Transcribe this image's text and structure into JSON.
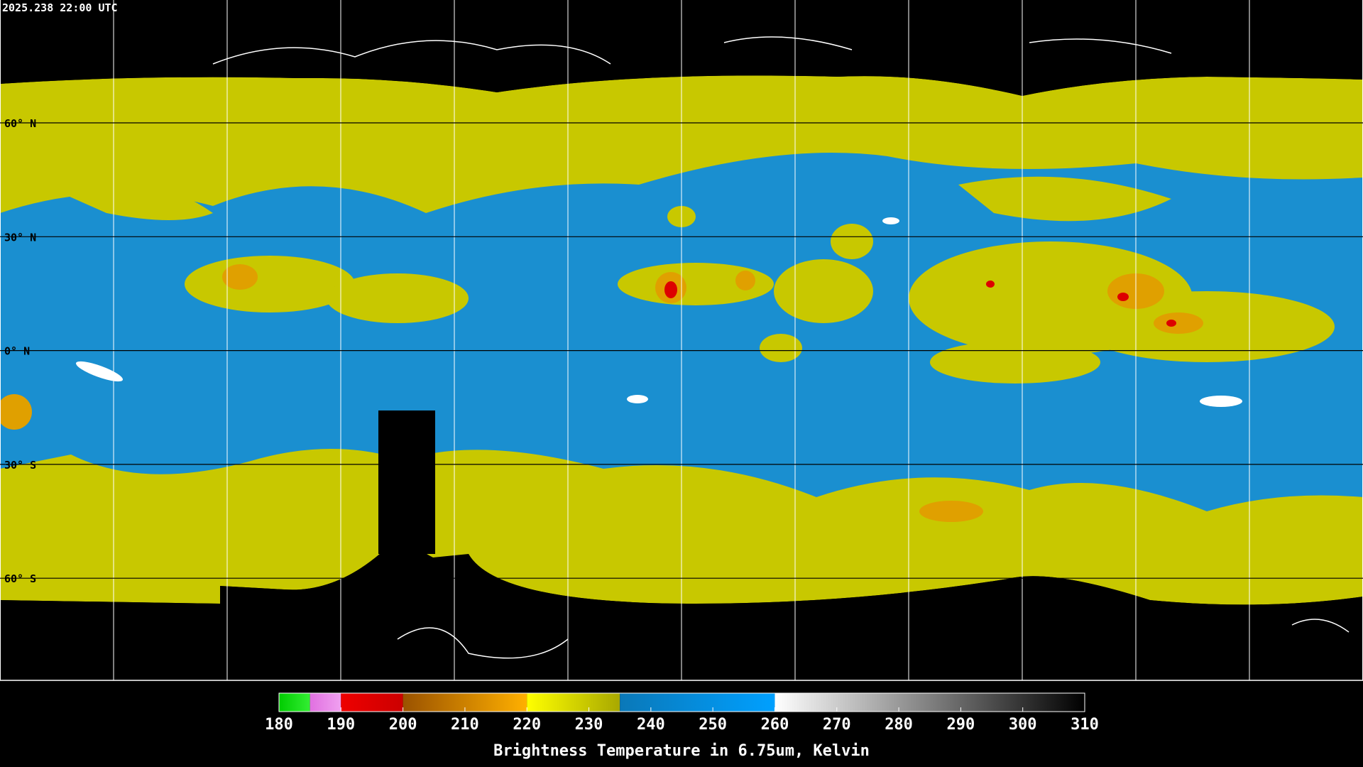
{
  "header": {
    "timestamp": "2025.238 22:00 UTC"
  },
  "map": {
    "lat_labels": [
      "60° N",
      "30° N",
      "0° N",
      "30° S",
      "60° S"
    ]
  },
  "colorbar": {
    "title": "Brightness Temperature in 6.75um, Kelvin",
    "lim": [
      180,
      310
    ],
    "ticks": [
      180,
      190,
      200,
      210,
      220,
      230,
      240,
      250,
      260,
      270,
      280,
      290,
      300,
      310
    ],
    "segments": [
      {
        "from": 180,
        "to": 185,
        "colors": [
          "#00cc00",
          "#33ee33"
        ]
      },
      {
        "from": 185,
        "to": 190,
        "colors": [
          "#e070e0",
          "#f0a0f0"
        ]
      },
      {
        "from": 190,
        "to": 200,
        "colors": [
          "#ee0000",
          "#cc0000"
        ]
      },
      {
        "from": 200,
        "to": 220,
        "colors": [
          "#9a5200",
          "#ffb000"
        ]
      },
      {
        "from": 220,
        "to": 235,
        "colors": [
          "#ffff00",
          "#a8a800"
        ]
      },
      {
        "from": 235,
        "to": 260,
        "colors": [
          "#0a78b8",
          "#00a0ff"
        ]
      },
      {
        "from": 260,
        "to": 310,
        "colors": [
          "#ffffff",
          "#000000"
        ]
      }
    ]
  }
}
